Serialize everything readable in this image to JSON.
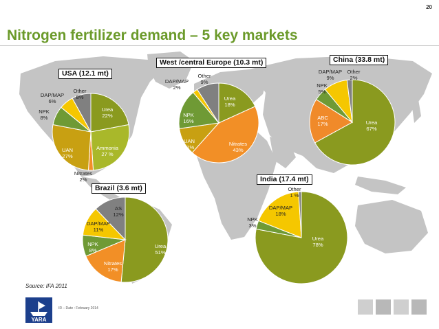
{
  "page_number": "20",
  "title": "Nitrogen fertilizer demand  – 5 key markets",
  "source": "Source: IFA 2011",
  "footer": "IR – Date : February 2014",
  "logo": {
    "text": "YARA",
    "icon": "yara-viking-ship-logo"
  },
  "colors": {
    "title": "#6b9a2a",
    "urea": "#8a9a1f",
    "ammonia": "#a9b82a",
    "nitrates": "#f28f26",
    "uan": "#c8a012",
    "npk": "#6f9a35",
    "dap_map": "#f5c700",
    "other": "#808080",
    "as": "#808080",
    "abc": "#f08a2a"
  },
  "chart_data": [
    {
      "type": "pie",
      "title": "USA (12.1 mt)",
      "slices": [
        {
          "name": "Urea",
          "value": 22,
          "label": "Urea\n22%"
        },
        {
          "name": "Ammonia",
          "value": 27,
          "label": "Ammonia\n27 %"
        },
        {
          "name": "Nitrates",
          "value": 2,
          "label": "Nitrates\n2%"
        },
        {
          "name": "UAN",
          "value": 27,
          "label": "UAN\n27%"
        },
        {
          "name": "NPK",
          "value": 8,
          "label": "NPK\n8%"
        },
        {
          "name": "DAP/MAP",
          "value": 6,
          "label": "DAP/MAP\n6%"
        },
        {
          "name": "Other",
          "value": 8,
          "label": "Other\n8%"
        }
      ]
    },
    {
      "type": "pie",
      "title": "West /central Europe (10.3 mt)",
      "slices": [
        {
          "name": "Urea",
          "value": 18,
          "label": "Urea\n18%"
        },
        {
          "name": "Nitrates",
          "value": 43,
          "label": "Nitrates\n43%"
        },
        {
          "name": "UAN",
          "value": 11,
          "label": "UAN\n11%"
        },
        {
          "name": "NPK",
          "value": 16,
          "label": "NPK\n16%"
        },
        {
          "name": "DAP/MAP",
          "value": 2,
          "label": "DAP/MAP\n2%"
        },
        {
          "name": "Other",
          "value": 9,
          "label": "Other\n9%"
        }
      ]
    },
    {
      "type": "pie",
      "title": "China (33.8 mt)",
      "slices": [
        {
          "name": "Urea",
          "value": 67,
          "label": "Urea\n67%"
        },
        {
          "name": "ABC",
          "value": 17,
          "label": "ABC\n17%"
        },
        {
          "name": "NPK",
          "value": 5,
          "label": "NPK\n5%"
        },
        {
          "name": "DAP/MAP",
          "value": 9,
          "label": "DAP/MAP\n9%"
        },
        {
          "name": "Other",
          "value": 2,
          "label": "Other\n2%"
        }
      ]
    },
    {
      "type": "pie",
      "title": "Brazil (3.6 mt)",
      "slices": [
        {
          "name": "Urea",
          "value": 51,
          "label": "Urea\n51%"
        },
        {
          "name": "Nitrates",
          "value": 17,
          "label": "Nitrates\n17%"
        },
        {
          "name": "NPK",
          "value": 8,
          "label": "NPK\n8%"
        },
        {
          "name": "DAP/MAP",
          "value": 11,
          "label": "DAP/MAP\n11%"
        },
        {
          "name": "AS",
          "value": 12,
          "label": "AS\n12%"
        }
      ]
    },
    {
      "type": "pie",
      "title": "India (17.4 mt)",
      "slices": [
        {
          "name": "Urea",
          "value": 78,
          "label": "Urea\n78%"
        },
        {
          "name": "NPK",
          "value": 3,
          "label": "NPK\n3%"
        },
        {
          "name": "DAP/MAP",
          "value": 18,
          "label": "DAP/MAP\n18%"
        },
        {
          "name": "Other",
          "value": 1,
          "label": "Other\n1 %"
        }
      ]
    }
  ]
}
